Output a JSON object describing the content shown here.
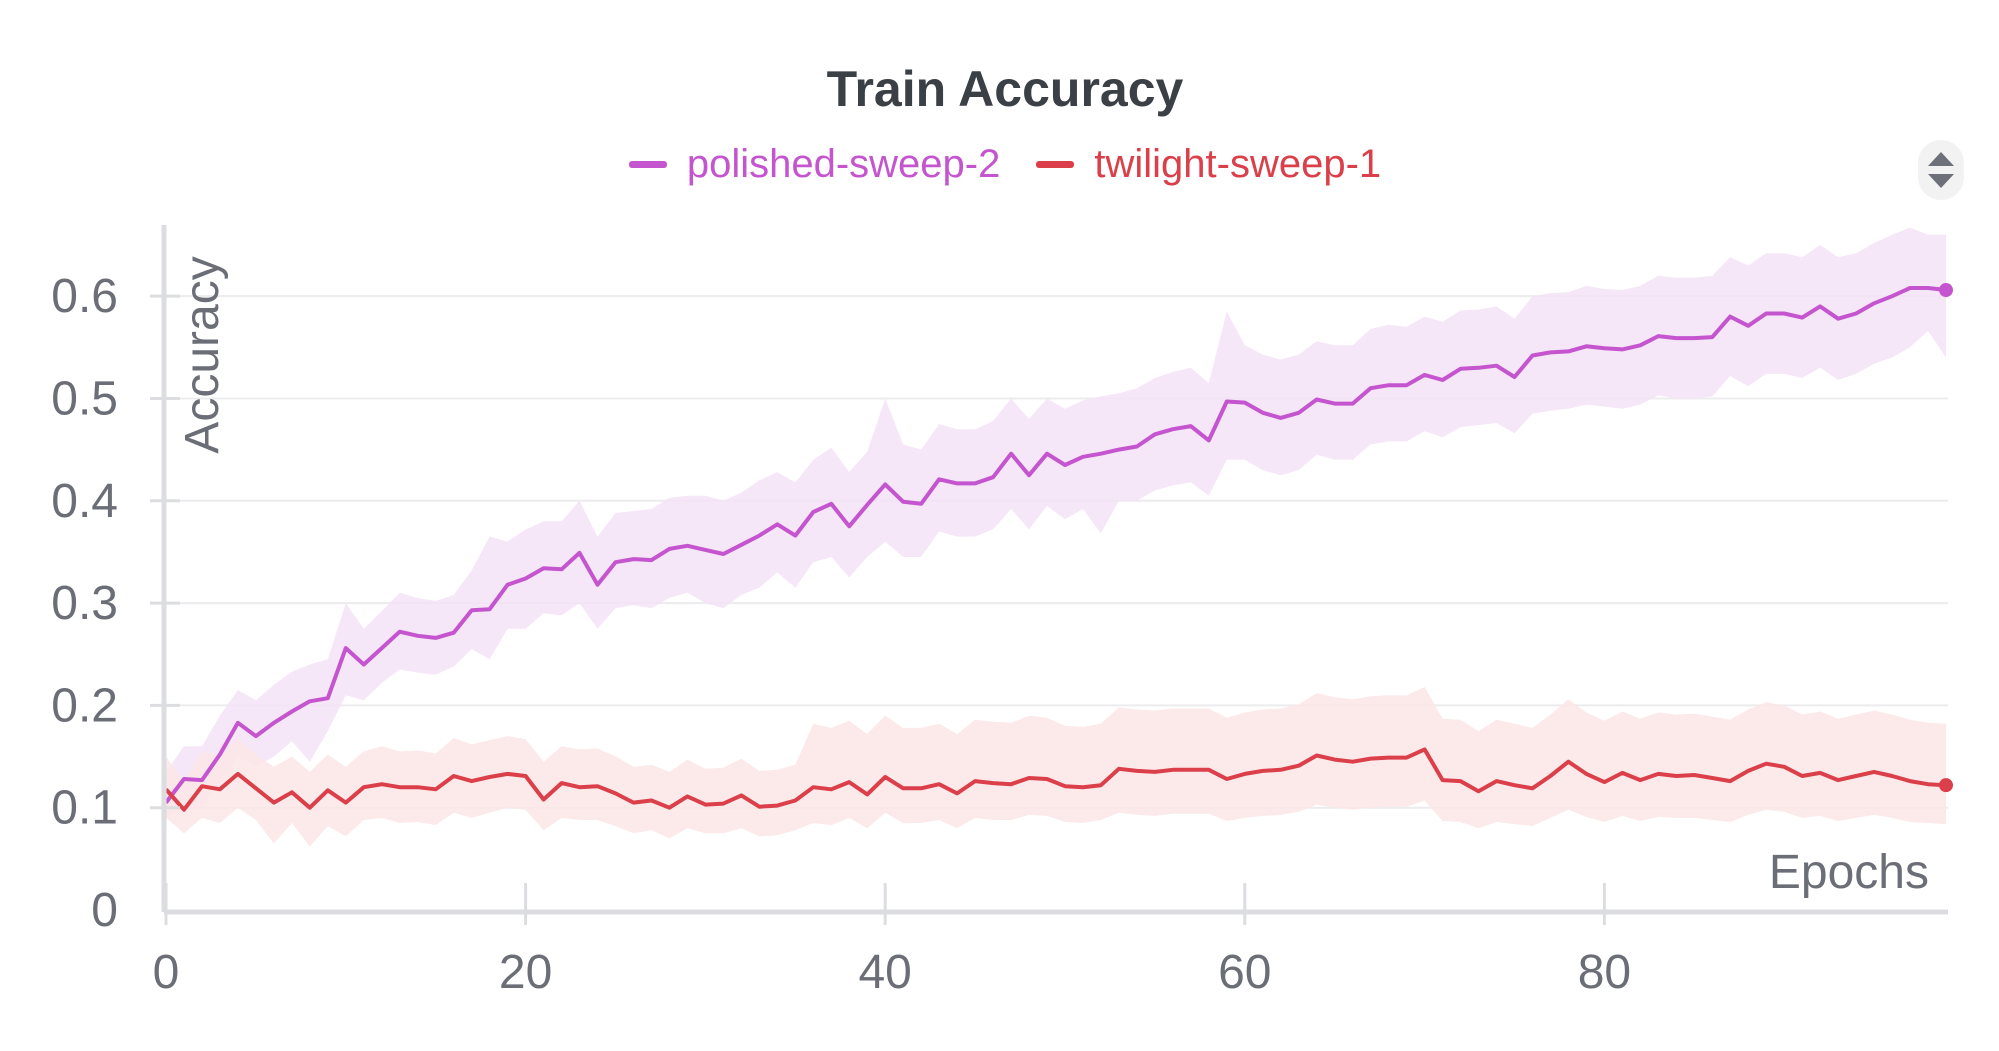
{
  "chart_data": {
    "type": "line",
    "title": "Train Accuracy",
    "xlabel": "Epochs",
    "ylabel": "Accuracy",
    "xlim": [
      0,
      99
    ],
    "ylim": [
      0,
      0.65
    ],
    "x_ticks": [
      "0",
      "20",
      "40",
      "60",
      "80"
    ],
    "x_tick_values": [
      0,
      20,
      40,
      60,
      80
    ],
    "y_ticks": [
      "0",
      "0.1",
      "0.2",
      "0.3",
      "0.4",
      "0.5",
      "0.6"
    ],
    "y_tick_values": [
      0,
      0.1,
      0.2,
      0.3,
      0.4,
      0.5,
      0.6
    ],
    "grid": "horizontal",
    "legend_position": "top-center",
    "x": [
      0,
      1,
      2,
      3,
      4,
      5,
      6,
      7,
      8,
      9,
      10,
      11,
      12,
      13,
      14,
      15,
      16,
      17,
      18,
      19,
      20,
      21,
      22,
      23,
      24,
      25,
      26,
      27,
      28,
      29,
      30,
      31,
      32,
      33,
      34,
      35,
      36,
      37,
      38,
      39,
      40,
      41,
      42,
      43,
      44,
      45,
      46,
      47,
      48,
      49,
      50,
      51,
      52,
      53,
      54,
      55,
      56,
      57,
      58,
      59,
      60,
      61,
      62,
      63,
      64,
      65,
      66,
      67,
      68,
      69,
      70,
      71,
      72,
      73,
      74,
      75,
      76,
      77,
      78,
      79,
      80,
      81,
      82,
      83,
      84,
      85,
      86,
      87,
      88,
      89,
      90,
      91,
      92,
      93,
      94,
      95,
      96,
      97,
      98,
      99
    ],
    "series": [
      {
        "name": "polished-sweep-2",
        "color": "#c455cf",
        "band_color": "#f3e3f6",
        "values": [
          0.105,
          0.128,
          0.127,
          0.152,
          0.183,
          0.17,
          0.183,
          0.194,
          0.204,
          0.207,
          0.256,
          0.24,
          0.256,
          0.272,
          0.268,
          0.266,
          0.271,
          0.293,
          0.294,
          0.318,
          0.324,
          0.334,
          0.333,
          0.349,
          0.318,
          0.34,
          0.343,
          0.342,
          0.353,
          0.356,
          0.352,
          0.348,
          0.357,
          0.366,
          0.377,
          0.366,
          0.389,
          0.397,
          0.375,
          0.396,
          0.416,
          0.399,
          0.397,
          0.421,
          0.417,
          0.417,
          0.423,
          0.446,
          0.425,
          0.446,
          0.435,
          0.443,
          0.446,
          0.45,
          0.453,
          0.465,
          0.47,
          0.473,
          0.459,
          0.497,
          0.496,
          0.486,
          0.481,
          0.486,
          0.499,
          0.495,
          0.495,
          0.51,
          0.513,
          0.513,
          0.523,
          0.518,
          0.529,
          0.53,
          0.532,
          0.521,
          0.542,
          0.545,
          0.546,
          0.551,
          0.549,
          0.548,
          0.552,
          0.561,
          0.559,
          0.559,
          0.56,
          0.58,
          0.571,
          0.583,
          0.583,
          0.579,
          0.59,
          0.578,
          0.583,
          0.593,
          0.6,
          0.608,
          0.608,
          0.606
        ],
        "band_lower": [
          0.09,
          0.1,
          0.1,
          0.125,
          0.15,
          0.14,
          0.15,
          0.165,
          0.145,
          0.175,
          0.21,
          0.205,
          0.222,
          0.235,
          0.232,
          0.23,
          0.238,
          0.255,
          0.245,
          0.275,
          0.275,
          0.29,
          0.288,
          0.3,
          0.275,
          0.295,
          0.298,
          0.295,
          0.305,
          0.31,
          0.3,
          0.295,
          0.308,
          0.315,
          0.33,
          0.315,
          0.34,
          0.345,
          0.325,
          0.345,
          0.36,
          0.345,
          0.345,
          0.37,
          0.365,
          0.365,
          0.372,
          0.392,
          0.372,
          0.395,
          0.382,
          0.392,
          0.368,
          0.4,
          0.4,
          0.41,
          0.415,
          0.418,
          0.405,
          0.44,
          0.44,
          0.43,
          0.425,
          0.43,
          0.445,
          0.44,
          0.44,
          0.455,
          0.458,
          0.458,
          0.468,
          0.462,
          0.472,
          0.474,
          0.476,
          0.466,
          0.485,
          0.488,
          0.49,
          0.494,
          0.492,
          0.49,
          0.494,
          0.503,
          0.5,
          0.5,
          0.502,
          0.522,
          0.512,
          0.524,
          0.524,
          0.52,
          0.53,
          0.518,
          0.524,
          0.534,
          0.54,
          0.55,
          0.566,
          0.54
        ],
        "band_upper": [
          0.135,
          0.16,
          0.16,
          0.19,
          0.215,
          0.205,
          0.22,
          0.233,
          0.24,
          0.245,
          0.3,
          0.275,
          0.292,
          0.31,
          0.305,
          0.302,
          0.308,
          0.332,
          0.365,
          0.36,
          0.372,
          0.38,
          0.38,
          0.4,
          0.365,
          0.388,
          0.39,
          0.392,
          0.403,
          0.405,
          0.405,
          0.4,
          0.408,
          0.42,
          0.428,
          0.418,
          0.44,
          0.452,
          0.428,
          0.448,
          0.5,
          0.455,
          0.45,
          0.475,
          0.47,
          0.47,
          0.478,
          0.5,
          0.48,
          0.5,
          0.49,
          0.498,
          0.502,
          0.505,
          0.51,
          0.52,
          0.526,
          0.53,
          0.515,
          0.585,
          0.552,
          0.543,
          0.538,
          0.543,
          0.556,
          0.552,
          0.552,
          0.568,
          0.572,
          0.57,
          0.58,
          0.575,
          0.586,
          0.587,
          0.59,
          0.578,
          0.6,
          0.603,
          0.604,
          0.61,
          0.607,
          0.606,
          0.61,
          0.62,
          0.618,
          0.618,
          0.62,
          0.638,
          0.63,
          0.642,
          0.642,
          0.638,
          0.65,
          0.638,
          0.642,
          0.652,
          0.66,
          0.667,
          0.66,
          0.66
        ]
      },
      {
        "name": "twilight-sweep-1",
        "color": "#da3f4a",
        "band_color": "#fbe6e6",
        "values": [
          0.118,
          0.098,
          0.121,
          0.118,
          0.133,
          0.119,
          0.105,
          0.115,
          0.1,
          0.117,
          0.105,
          0.12,
          0.123,
          0.12,
          0.12,
          0.118,
          0.131,
          0.126,
          0.13,
          0.133,
          0.131,
          0.108,
          0.124,
          0.12,
          0.121,
          0.114,
          0.105,
          0.107,
          0.1,
          0.111,
          0.103,
          0.104,
          0.112,
          0.101,
          0.102,
          0.107,
          0.12,
          0.118,
          0.125,
          0.113,
          0.13,
          0.119,
          0.119,
          0.123,
          0.114,
          0.126,
          0.124,
          0.123,
          0.129,
          0.128,
          0.121,
          0.12,
          0.122,
          0.138,
          0.136,
          0.135,
          0.137,
          0.137,
          0.137,
          0.128,
          0.133,
          0.136,
          0.137,
          0.141,
          0.151,
          0.147,
          0.145,
          0.148,
          0.149,
          0.149,
          0.157,
          0.127,
          0.126,
          0.116,
          0.126,
          0.122,
          0.119,
          0.131,
          0.145,
          0.133,
          0.125,
          0.134,
          0.127,
          0.133,
          0.131,
          0.132,
          0.129,
          0.126,
          0.136,
          0.143,
          0.14,
          0.131,
          0.134,
          0.127,
          0.131,
          0.135,
          0.131,
          0.126,
          0.123,
          0.122
        ],
        "band_lower": [
          0.09,
          0.075,
          0.09,
          0.085,
          0.1,
          0.088,
          0.065,
          0.085,
          0.062,
          0.082,
          0.072,
          0.088,
          0.09,
          0.085,
          0.086,
          0.083,
          0.095,
          0.09,
          0.095,
          0.1,
          0.098,
          0.078,
          0.09,
          0.088,
          0.088,
          0.082,
          0.075,
          0.078,
          0.07,
          0.08,
          0.075,
          0.075,
          0.08,
          0.072,
          0.073,
          0.078,
          0.085,
          0.083,
          0.09,
          0.08,
          0.095,
          0.085,
          0.085,
          0.088,
          0.08,
          0.09,
          0.088,
          0.088,
          0.093,
          0.092,
          0.086,
          0.085,
          0.088,
          0.095,
          0.093,
          0.092,
          0.094,
          0.094,
          0.094,
          0.087,
          0.09,
          0.092,
          0.093,
          0.096,
          0.103,
          0.1,
          0.098,
          0.1,
          0.101,
          0.101,
          0.107,
          0.087,
          0.086,
          0.08,
          0.086,
          0.084,
          0.082,
          0.09,
          0.098,
          0.091,
          0.086,
          0.092,
          0.087,
          0.091,
          0.09,
          0.09,
          0.088,
          0.086,
          0.093,
          0.098,
          0.096,
          0.09,
          0.092,
          0.087,
          0.09,
          0.093,
          0.09,
          0.086,
          0.085,
          0.084
        ],
        "band_upper": [
          0.15,
          0.125,
          0.155,
          0.15,
          0.168,
          0.152,
          0.14,
          0.15,
          0.135,
          0.152,
          0.14,
          0.155,
          0.16,
          0.155,
          0.156,
          0.153,
          0.168,
          0.162,
          0.166,
          0.17,
          0.167,
          0.145,
          0.16,
          0.157,
          0.158,
          0.15,
          0.14,
          0.142,
          0.135,
          0.147,
          0.138,
          0.139,
          0.148,
          0.136,
          0.137,
          0.142,
          0.182,
          0.178,
          0.185,
          0.172,
          0.19,
          0.178,
          0.178,
          0.182,
          0.172,
          0.186,
          0.184,
          0.183,
          0.19,
          0.188,
          0.18,
          0.179,
          0.182,
          0.198,
          0.196,
          0.195,
          0.197,
          0.197,
          0.197,
          0.188,
          0.193,
          0.196,
          0.197,
          0.201,
          0.212,
          0.208,
          0.206,
          0.209,
          0.21,
          0.21,
          0.218,
          0.187,
          0.186,
          0.175,
          0.186,
          0.182,
          0.178,
          0.191,
          0.206,
          0.193,
          0.185,
          0.194,
          0.187,
          0.193,
          0.191,
          0.192,
          0.189,
          0.186,
          0.196,
          0.203,
          0.2,
          0.191,
          0.194,
          0.187,
          0.191,
          0.195,
          0.191,
          0.186,
          0.183,
          0.182
        ]
      }
    ]
  },
  "controls": {
    "scroll_icon": "up-down-chevron-icon"
  }
}
